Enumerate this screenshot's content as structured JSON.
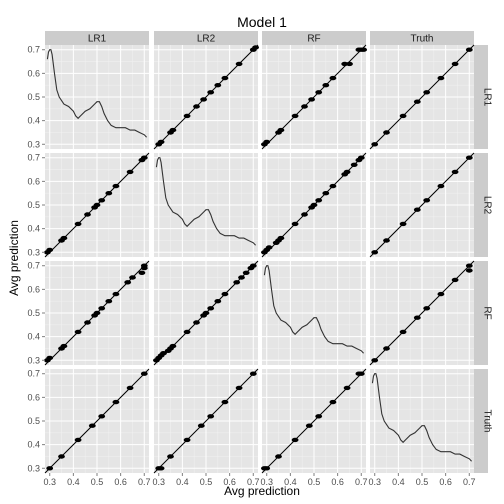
{
  "chart_data": {
    "type": "scatter",
    "title": "Model 1",
    "xlabel": "Avg prediction",
    "ylabel": "Avg prediction",
    "facets": {
      "columns": [
        "LR1",
        "LR2",
        "RF",
        "Truth"
      ],
      "rows": [
        "LR1",
        "LR2",
        "RF",
        "Truth"
      ]
    },
    "xlim": [
      0.28,
      0.72
    ],
    "ylim": [
      0.28,
      0.72
    ],
    "x_ticks": [
      "0.3",
      "0.4",
      "0.5",
      "0.6",
      "0.7"
    ],
    "y_ticks": [
      "0.3",
      "0.4",
      "0.5",
      "0.6",
      "0.7"
    ],
    "reference_line": "y = x",
    "diagonal_density": {
      "x": [
        0.29,
        0.295,
        0.3,
        0.305,
        0.31,
        0.32,
        0.33,
        0.34,
        0.36,
        0.38,
        0.4,
        0.41,
        0.42,
        0.43,
        0.45,
        0.47,
        0.49,
        0.5,
        0.51,
        0.52,
        0.53,
        0.545,
        0.56,
        0.58,
        0.6,
        0.62,
        0.64,
        0.66,
        0.68,
        0.7,
        0.71
      ],
      "y": [
        0.66,
        0.69,
        0.7,
        0.7,
        0.68,
        0.6,
        0.53,
        0.5,
        0.47,
        0.46,
        0.44,
        0.42,
        0.41,
        0.42,
        0.44,
        0.45,
        0.47,
        0.48,
        0.48,
        0.46,
        0.43,
        0.4,
        0.38,
        0.37,
        0.37,
        0.37,
        0.36,
        0.36,
        0.35,
        0.34,
        0.33
      ]
    },
    "panels": [
      {
        "row": "LR1",
        "col": "LR2",
        "x": [
          0.3,
          0.31,
          0.35,
          0.36,
          0.42,
          0.46,
          0.49,
          0.52,
          0.55,
          0.58,
          0.64,
          0.7,
          0.71
        ],
        "y": [
          0.3,
          0.31,
          0.35,
          0.36,
          0.42,
          0.46,
          0.49,
          0.52,
          0.55,
          0.58,
          0.64,
          0.7,
          0.71
        ]
      },
      {
        "row": "LR1",
        "col": "RF",
        "x": [
          0.29,
          0.3,
          0.35,
          0.36,
          0.42,
          0.46,
          0.49,
          0.52,
          0.55,
          0.58,
          0.63,
          0.65,
          0.69,
          0.7,
          0.71
        ],
        "y": [
          0.3,
          0.31,
          0.35,
          0.36,
          0.42,
          0.46,
          0.49,
          0.52,
          0.55,
          0.58,
          0.64,
          0.64,
          0.7,
          0.7,
          0.7
        ]
      },
      {
        "row": "LR1",
        "col": "Truth",
        "x": [
          0.3,
          0.35,
          0.42,
          0.48,
          0.52,
          0.58,
          0.64,
          0.7
        ],
        "y": [
          0.3,
          0.35,
          0.42,
          0.48,
          0.52,
          0.58,
          0.64,
          0.7
        ]
      },
      {
        "row": "LR2",
        "col": "LR1",
        "x": [
          0.29,
          0.3,
          0.35,
          0.36,
          0.42,
          0.46,
          0.49,
          0.5,
          0.52,
          0.55,
          0.58,
          0.64,
          0.69,
          0.7
        ],
        "y": [
          0.3,
          0.31,
          0.35,
          0.36,
          0.42,
          0.46,
          0.49,
          0.5,
          0.52,
          0.55,
          0.58,
          0.64,
          0.69,
          0.7
        ]
      },
      {
        "row": "LR2",
        "col": "RF",
        "x": [
          0.29,
          0.3,
          0.31,
          0.34,
          0.35,
          0.36,
          0.42,
          0.46,
          0.49,
          0.5,
          0.52,
          0.55,
          0.58,
          0.63,
          0.64,
          0.67,
          0.69,
          0.7
        ],
        "y": [
          0.3,
          0.31,
          0.32,
          0.34,
          0.35,
          0.36,
          0.42,
          0.46,
          0.49,
          0.5,
          0.52,
          0.55,
          0.58,
          0.63,
          0.64,
          0.67,
          0.69,
          0.7
        ]
      },
      {
        "row": "LR2",
        "col": "Truth",
        "x": [
          0.3,
          0.35,
          0.42,
          0.48,
          0.52,
          0.58,
          0.64,
          0.7
        ],
        "y": [
          0.3,
          0.35,
          0.42,
          0.48,
          0.52,
          0.58,
          0.64,
          0.7
        ]
      },
      {
        "row": "RF",
        "col": "LR1",
        "x": [
          0.29,
          0.3,
          0.35,
          0.36,
          0.42,
          0.46,
          0.49,
          0.5,
          0.52,
          0.55,
          0.58,
          0.63,
          0.65,
          0.69,
          0.7,
          0.7
        ],
        "y": [
          0.3,
          0.31,
          0.35,
          0.36,
          0.42,
          0.46,
          0.49,
          0.5,
          0.52,
          0.55,
          0.58,
          0.63,
          0.65,
          0.67,
          0.69,
          0.7
        ]
      },
      {
        "row": "RF",
        "col": "LR2",
        "x": [
          0.29,
          0.3,
          0.31,
          0.32,
          0.34,
          0.35,
          0.36,
          0.42,
          0.46,
          0.49,
          0.5,
          0.52,
          0.55,
          0.58,
          0.63,
          0.65,
          0.67,
          0.69,
          0.7
        ],
        "y": [
          0.3,
          0.31,
          0.32,
          0.33,
          0.34,
          0.35,
          0.36,
          0.42,
          0.46,
          0.49,
          0.5,
          0.52,
          0.55,
          0.58,
          0.63,
          0.65,
          0.67,
          0.69,
          0.7
        ]
      },
      {
        "row": "RF",
        "col": "Truth",
        "x": [
          0.3,
          0.35,
          0.42,
          0.48,
          0.52,
          0.58,
          0.64,
          0.7,
          0.7
        ],
        "y": [
          0.3,
          0.35,
          0.42,
          0.48,
          0.52,
          0.58,
          0.64,
          0.68,
          0.7
        ]
      },
      {
        "row": "Truth",
        "col": "LR1",
        "x": [
          0.3,
          0.35,
          0.42,
          0.48,
          0.52,
          0.58,
          0.64,
          0.7
        ],
        "y": [
          0.3,
          0.35,
          0.42,
          0.48,
          0.52,
          0.58,
          0.64,
          0.7
        ]
      },
      {
        "row": "Truth",
        "col": "LR2",
        "x": [
          0.3,
          0.31,
          0.35,
          0.42,
          0.48,
          0.52,
          0.58,
          0.64,
          0.7
        ],
        "y": [
          0.3,
          0.3,
          0.35,
          0.42,
          0.48,
          0.52,
          0.58,
          0.64,
          0.7
        ]
      },
      {
        "row": "Truth",
        "col": "RF",
        "x": [
          0.29,
          0.3,
          0.35,
          0.42,
          0.48,
          0.52,
          0.58,
          0.64,
          0.69,
          0.7
        ],
        "y": [
          0.3,
          0.3,
          0.35,
          0.42,
          0.48,
          0.52,
          0.58,
          0.64,
          0.7,
          0.7
        ]
      }
    ],
    "grid": true,
    "colors": {
      "panel_bg": "#e5e5e5",
      "grid_major": "#ffffff",
      "grid_minor": "#f2f2f2",
      "strip_bg": "#cccccc",
      "points": "#000000",
      "line": "#000000",
      "density_line": "#333333"
    }
  }
}
